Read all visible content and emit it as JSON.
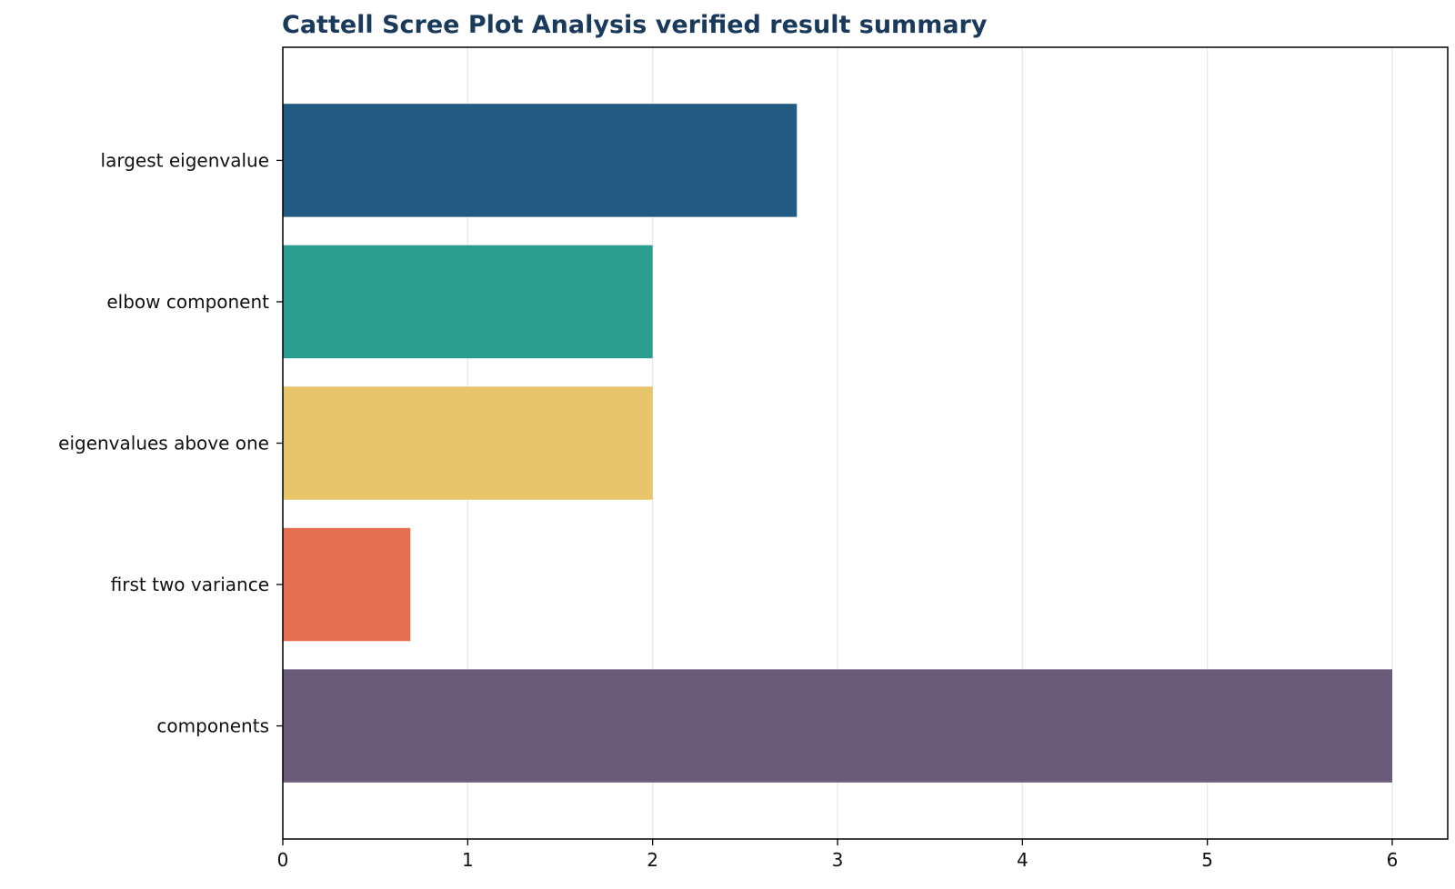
{
  "chart_data": {
    "type": "bar",
    "orientation": "horizontal",
    "title": "Cattell Scree Plot Analysis verified result summary",
    "xlabel": "",
    "ylabel": "",
    "categories": [
      "largest eigenvalue",
      "elbow component",
      "eigenvalues above one",
      "first two variance",
      "components"
    ],
    "values": [
      2.78,
      2.0,
      2.0,
      0.69,
      6.0
    ],
    "colors": [
      "#215b81",
      "#2b9d8e",
      "#e8c46b",
      "#e76f51",
      "#6b5b7b"
    ],
    "xlim": [
      0,
      6.3
    ],
    "xticks": [
      "0",
      "1",
      "2",
      "3",
      "4",
      "5",
      "6"
    ],
    "grid": "vertical",
    "legend": "none"
  }
}
